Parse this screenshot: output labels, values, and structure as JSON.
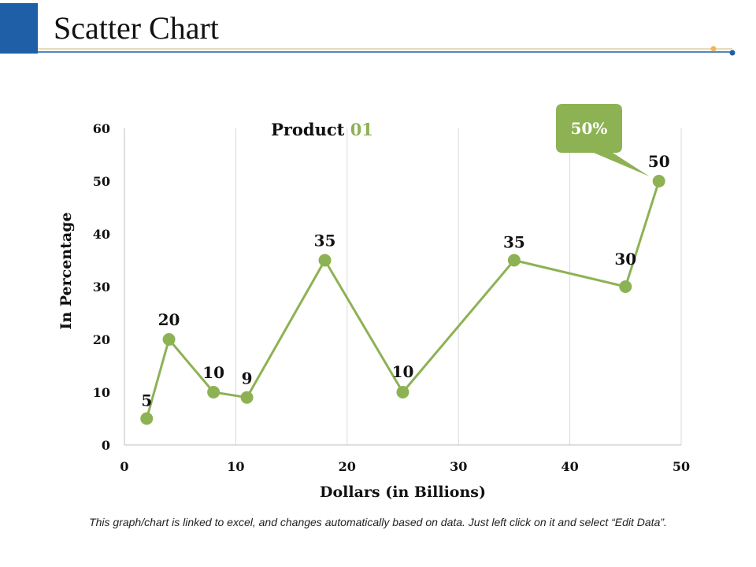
{
  "page": {
    "title": "Scatter Chart",
    "footnote": "This graph/chart is linked to excel, and changes automatically based on data. Just left click on it and select “Edit Data”."
  },
  "colors": {
    "accent": "#1f5fa8",
    "series": "#8db254",
    "rule_dot": "#f0b45a",
    "grid": "#d9d9d9"
  },
  "chart_data": {
    "type": "scatter",
    "xlabel": "Dollars (in Billions)",
    "ylabel": "In Percentage",
    "xlim": [
      0,
      50
    ],
    "ylim": [
      0,
      60
    ],
    "x_ticks": [
      0,
      10,
      20,
      30,
      40,
      50
    ],
    "y_ticks": [
      0,
      10,
      20,
      30,
      40,
      50,
      60
    ],
    "grid": "vertical",
    "product_label": {
      "prefix": "Product ",
      "suffix": "01"
    },
    "callout": "50%",
    "series": [
      {
        "points": [
          {
            "x": 2,
            "y": 5,
            "label": "5"
          },
          {
            "x": 4,
            "y": 20,
            "label": "20"
          },
          {
            "x": 8,
            "y": 10,
            "label": "10"
          },
          {
            "x": 11,
            "y": 9,
            "label": "9"
          },
          {
            "x": 18,
            "y": 35,
            "label": "35"
          },
          {
            "x": 25,
            "y": 10,
            "label": "10"
          },
          {
            "x": 35,
            "y": 35,
            "label": "35"
          },
          {
            "x": 45,
            "y": 30,
            "label": "30"
          },
          {
            "x": 48,
            "y": 50,
            "label": "50"
          }
        ]
      }
    ]
  }
}
